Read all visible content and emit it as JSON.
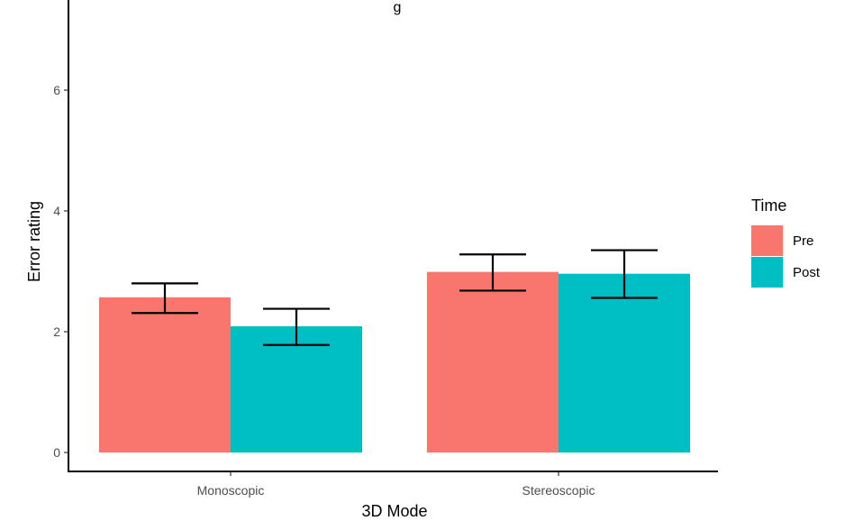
{
  "chart_data": {
    "type": "bar",
    "title": "g",
    "xlabel": "3D Mode",
    "ylabel": "Error rating",
    "categories": [
      "Monoscopic",
      "Stereoscopic"
    ],
    "series": [
      {
        "name": "Pre",
        "values": [
          2.57,
          2.99
        ],
        "err_low": [
          2.31,
          2.68
        ],
        "err_high": [
          2.8,
          3.28
        ]
      },
      {
        "name": "Post",
        "values": [
          2.09,
          2.96
        ],
        "err_low": [
          1.78,
          2.56
        ],
        "err_high": [
          2.38,
          3.35
        ]
      }
    ],
    "ylim": [
      0,
      7
    ],
    "yticks": [
      0,
      2,
      4,
      6
    ],
    "grid": false,
    "legend": {
      "title": "Time",
      "placement": "right"
    },
    "colors": {
      "Pre": "#F8766D",
      "Post": "#00BFC4"
    }
  }
}
